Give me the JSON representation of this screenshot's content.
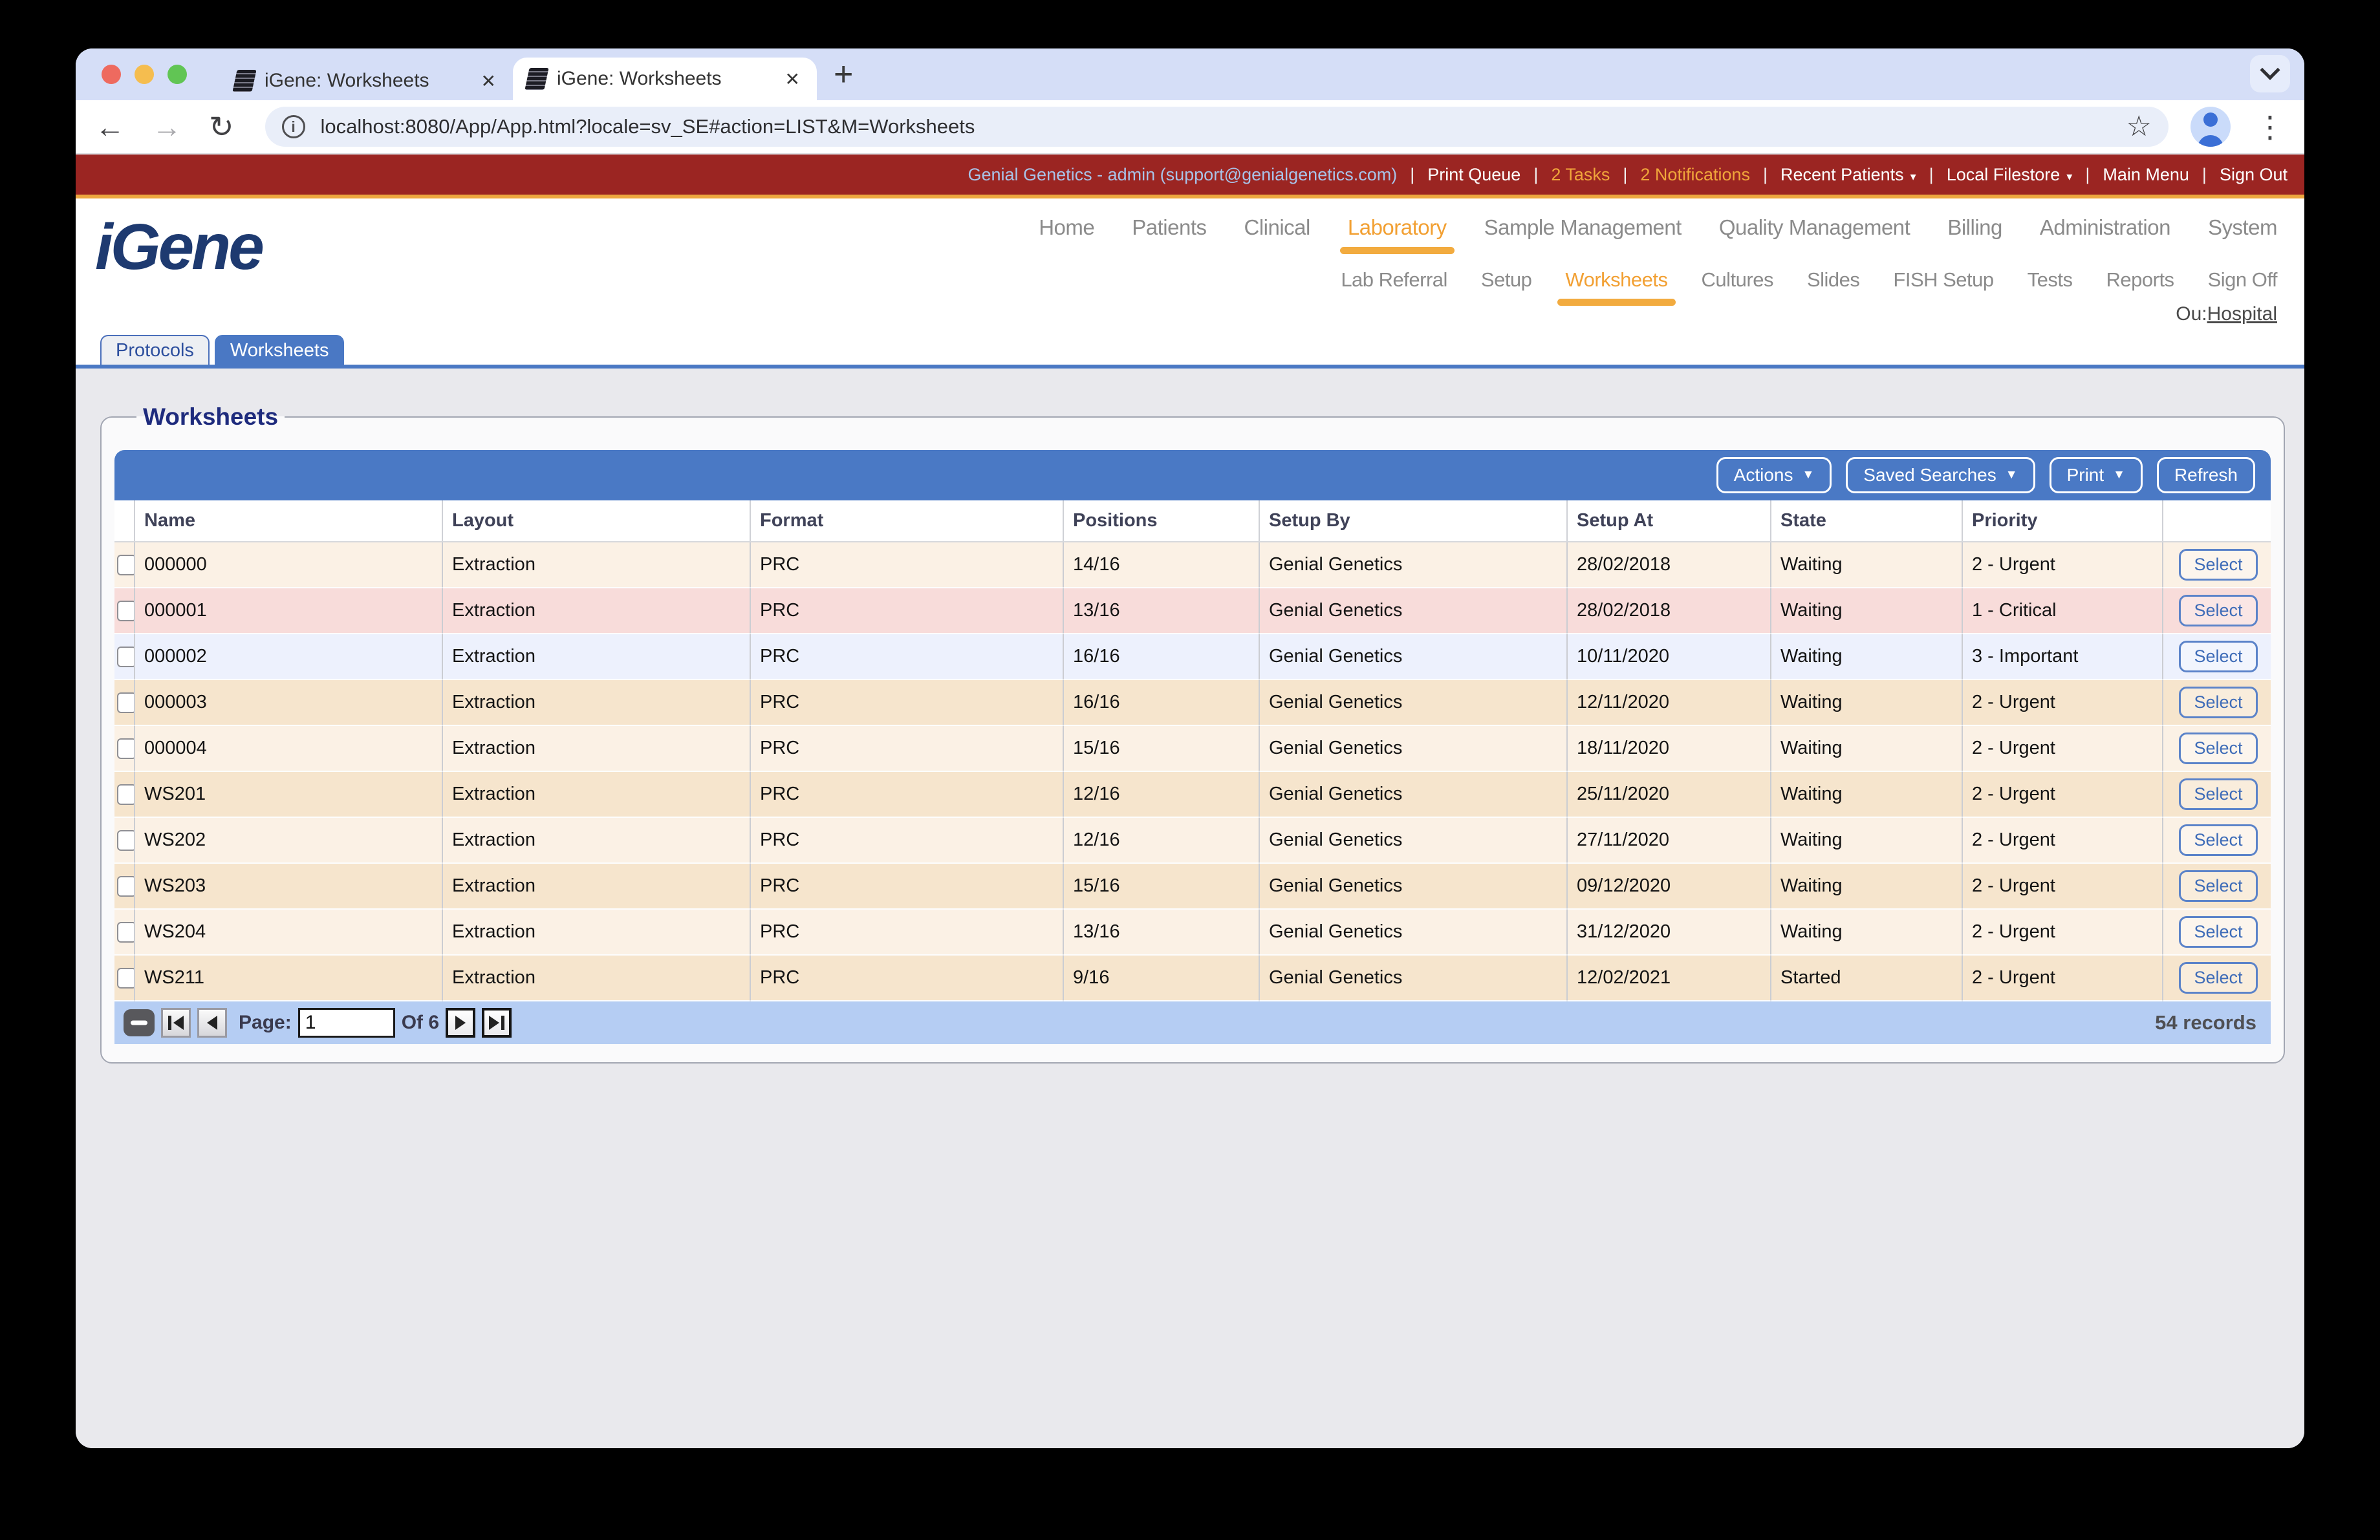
{
  "browser": {
    "tabs": [
      {
        "title": "iGene: Worksheets"
      },
      {
        "title": "iGene: Worksheets"
      }
    ],
    "new_tab_label": "+",
    "url": "localhost:8080/App/App.html?locale=sv_SE#action=LIST&M=Worksheets",
    "back_icon": "←",
    "forward_icon": "→",
    "reload_icon": "↻",
    "info_icon": "i",
    "star_icon": "☆",
    "menu_icon": "⋮",
    "close_icon": "✕"
  },
  "topbar": {
    "items": [
      {
        "label": "Genial Genetics - admin (support@genialgenetics.com)",
        "tone": "user"
      },
      {
        "label": "Print Queue",
        "tone": "plain"
      },
      {
        "label": "2 Tasks",
        "tone": "alert"
      },
      {
        "label": "2 Notifications",
        "tone": "alert"
      },
      {
        "label": "Recent Patients",
        "tone": "plain",
        "caret": true
      },
      {
        "label": "Local Filestore",
        "tone": "plain",
        "caret": true
      },
      {
        "label": "Main Menu",
        "tone": "plain"
      },
      {
        "label": "Sign Out",
        "tone": "plain"
      }
    ]
  },
  "brand": {
    "logo": "iGene"
  },
  "main_nav": [
    {
      "label": "Home"
    },
    {
      "label": "Patients"
    },
    {
      "label": "Clinical"
    },
    {
      "label": "Laboratory",
      "active": true
    },
    {
      "label": "Sample Management"
    },
    {
      "label": "Quality Management"
    },
    {
      "label": "Billing"
    },
    {
      "label": "Administration"
    },
    {
      "label": "System"
    }
  ],
  "sub_nav": [
    {
      "label": "Lab Referral"
    },
    {
      "label": "Setup"
    },
    {
      "label": "Worksheets",
      "active": true
    },
    {
      "label": "Cultures"
    },
    {
      "label": "Slides"
    },
    {
      "label": "FISH Setup"
    },
    {
      "label": "Tests"
    },
    {
      "label": "Reports"
    },
    {
      "label": "Sign Off"
    }
  ],
  "ou": {
    "prefix": "Ou:",
    "link": "Hospital"
  },
  "app_tabs": [
    {
      "label": "Protocols"
    },
    {
      "label": "Worksheets",
      "active": true
    }
  ],
  "panel": {
    "legend": "Worksheets",
    "toolbar": [
      {
        "label": "Actions",
        "caret": true
      },
      {
        "label": "Saved Searches",
        "caret": true
      },
      {
        "label": "Print",
        "caret": true
      },
      {
        "label": "Refresh"
      }
    ]
  },
  "table": {
    "columns": [
      "Name",
      "Layout",
      "Format",
      "Positions",
      "Setup By",
      "Setup At",
      "State",
      "Priority"
    ],
    "select_label": "Select",
    "rows": [
      {
        "name": "000000",
        "layout": "Extraction",
        "format": "PRC",
        "positions": "14/16",
        "setup_by": "Genial Genetics",
        "setup_at": "28/02/2018",
        "state": "Waiting",
        "priority": "2 - Urgent",
        "variant": "light"
      },
      {
        "name": "000001",
        "layout": "Extraction",
        "format": "PRC",
        "positions": "13/16",
        "setup_by": "Genial Genetics",
        "setup_at": "28/02/2018",
        "state": "Waiting",
        "priority": "1 - Critical",
        "variant": "pink"
      },
      {
        "name": "000002",
        "layout": "Extraction",
        "format": "PRC",
        "positions": "16/16",
        "setup_by": "Genial Genetics",
        "setup_at": "10/11/2020",
        "state": "Waiting",
        "priority": "3 - Important",
        "variant": "blue"
      },
      {
        "name": "000003",
        "layout": "Extraction",
        "format": "PRC",
        "positions": "16/16",
        "setup_by": "Genial Genetics",
        "setup_at": "12/11/2020",
        "state": "Waiting",
        "priority": "2 - Urgent",
        "variant": "dark"
      },
      {
        "name": "000004",
        "layout": "Extraction",
        "format": "PRC",
        "positions": "15/16",
        "setup_by": "Genial Genetics",
        "setup_at": "18/11/2020",
        "state": "Waiting",
        "priority": "2 - Urgent",
        "variant": "light"
      },
      {
        "name": "WS201",
        "layout": "Extraction",
        "format": "PRC",
        "positions": "12/16",
        "setup_by": "Genial Genetics",
        "setup_at": "25/11/2020",
        "state": "Waiting",
        "priority": "2 - Urgent",
        "variant": "dark"
      },
      {
        "name": "WS202",
        "layout": "Extraction",
        "format": "PRC",
        "positions": "12/16",
        "setup_by": "Genial Genetics",
        "setup_at": "27/11/2020",
        "state": "Waiting",
        "priority": "2 - Urgent",
        "variant": "light"
      },
      {
        "name": "WS203",
        "layout": "Extraction",
        "format": "PRC",
        "positions": "15/16",
        "setup_by": "Genial Genetics",
        "setup_at": "09/12/2020",
        "state": "Waiting",
        "priority": "2 - Urgent",
        "variant": "dark"
      },
      {
        "name": "WS204",
        "layout": "Extraction",
        "format": "PRC",
        "positions": "13/16",
        "setup_by": "Genial Genetics",
        "setup_at": "31/12/2020",
        "state": "Waiting",
        "priority": "2 - Urgent",
        "variant": "light"
      },
      {
        "name": "WS211",
        "layout": "Extraction",
        "format": "PRC",
        "positions": "9/16",
        "setup_by": "Genial Genetics",
        "setup_at": "12/02/2021",
        "state": "Started",
        "priority": "2 - Urgent",
        "variant": "dark"
      }
    ]
  },
  "pager": {
    "page_label": "Page:",
    "page_value": "1",
    "of_label": "Of 6",
    "records": "54 records"
  },
  "colors": {
    "brand_red": "#9B2522",
    "accent_orange": "#EDA73F",
    "nav_active_orange": "#F2A033",
    "toolbar_blue": "#4A79C5",
    "logo_navy": "#1E3A70",
    "row_light": "#FBF1E5",
    "row_dark": "#F6E5CD",
    "row_critical_pink": "#F8DCDA",
    "row_important_blue": "#EDF1FD",
    "pager_blue": "#B5CDF3"
  }
}
